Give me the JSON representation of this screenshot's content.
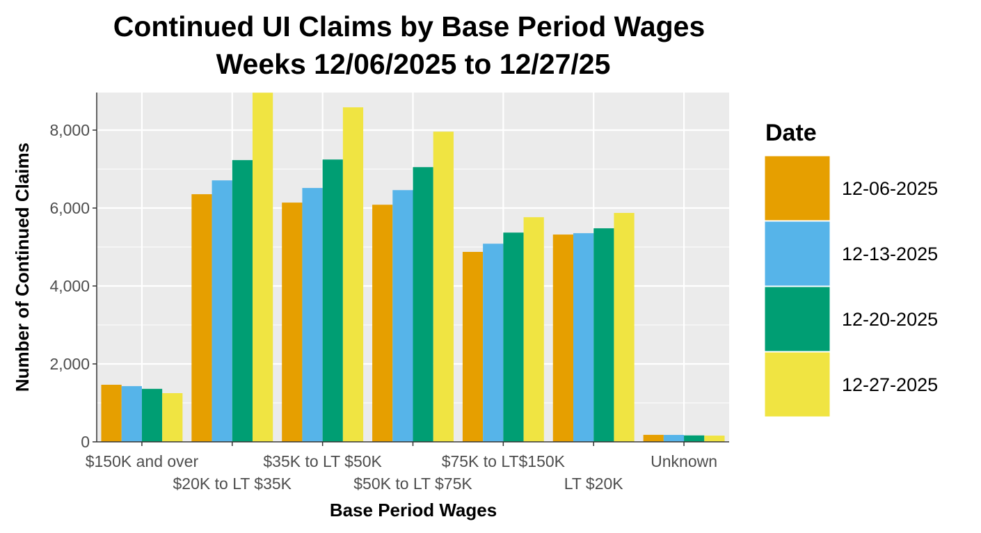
{
  "chart_data": {
    "type": "bar",
    "title": "Continued UI Claims by Base Period Wages",
    "subtitle": "Weeks 12/06/2025 to 12/27/25",
    "xlabel": "Base Period Wages",
    "ylabel": "Number of Continued Claims",
    "categories": [
      "$150K and over",
      "$20K to LT $35K",
      "$35K to LT $50K",
      "$50K to LT $75K",
      "$75K to LT$150K",
      "LT $20K",
      "Unknown"
    ],
    "series": [
      {
        "name": "12-06-2025",
        "color": "#E69F00",
        "values": [
          1465,
          6355,
          6140,
          6085,
          4875,
          5320,
          180
        ]
      },
      {
        "name": "12-13-2025",
        "color": "#56B4E9",
        "values": [
          1430,
          6710,
          6515,
          6460,
          5085,
          5355,
          178
        ]
      },
      {
        "name": "12-20-2025",
        "color": "#009E73",
        "values": [
          1360,
          7230,
          7245,
          7050,
          5370,
          5480,
          165
        ]
      },
      {
        "name": "12-27-2025",
        "color": "#F0E442",
        "values": [
          1250,
          8960,
          8585,
          7960,
          5765,
          5875,
          160
        ]
      }
    ],
    "yticks": [
      0,
      2000,
      4000,
      6000,
      8000
    ],
    "ytick_labels": [
      "0",
      "2,000",
      "4,000",
      "6,000",
      "8,000"
    ],
    "ylim": [
      0,
      8964
    ],
    "legend_title": "Date",
    "legend_position": "right",
    "grid": true
  }
}
